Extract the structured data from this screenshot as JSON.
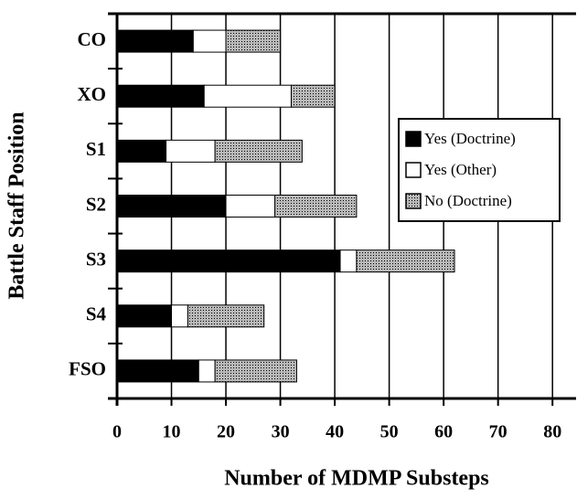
{
  "chart_data": {
    "type": "stacked_barh",
    "xlabel": "Number of MDMP Substeps",
    "ylabel": "Battle Staff Position",
    "categories": [
      "CO",
      "XO",
      "S1",
      "S2",
      "S3",
      "S4",
      "FSO"
    ],
    "series": [
      {
        "name": "Yes (Doctrine)",
        "color": "#000000",
        "values": [
          14,
          16,
          9,
          20,
          41,
          10,
          15
        ]
      },
      {
        "name": "Yes (Other)",
        "color": "#ffffff",
        "values": [
          6,
          16,
          9,
          9,
          3,
          3,
          3
        ]
      },
      {
        "name": "No (Doctrine)",
        "color": "#b8b8b8",
        "values": [
          10,
          8,
          16,
          15,
          18,
          14,
          15
        ]
      }
    ],
    "xlim": [
      0,
      84
    ],
    "xticks": [
      0,
      10,
      20,
      30,
      40,
      50,
      60,
      70,
      80
    ],
    "grid": true,
    "legend": "right"
  }
}
